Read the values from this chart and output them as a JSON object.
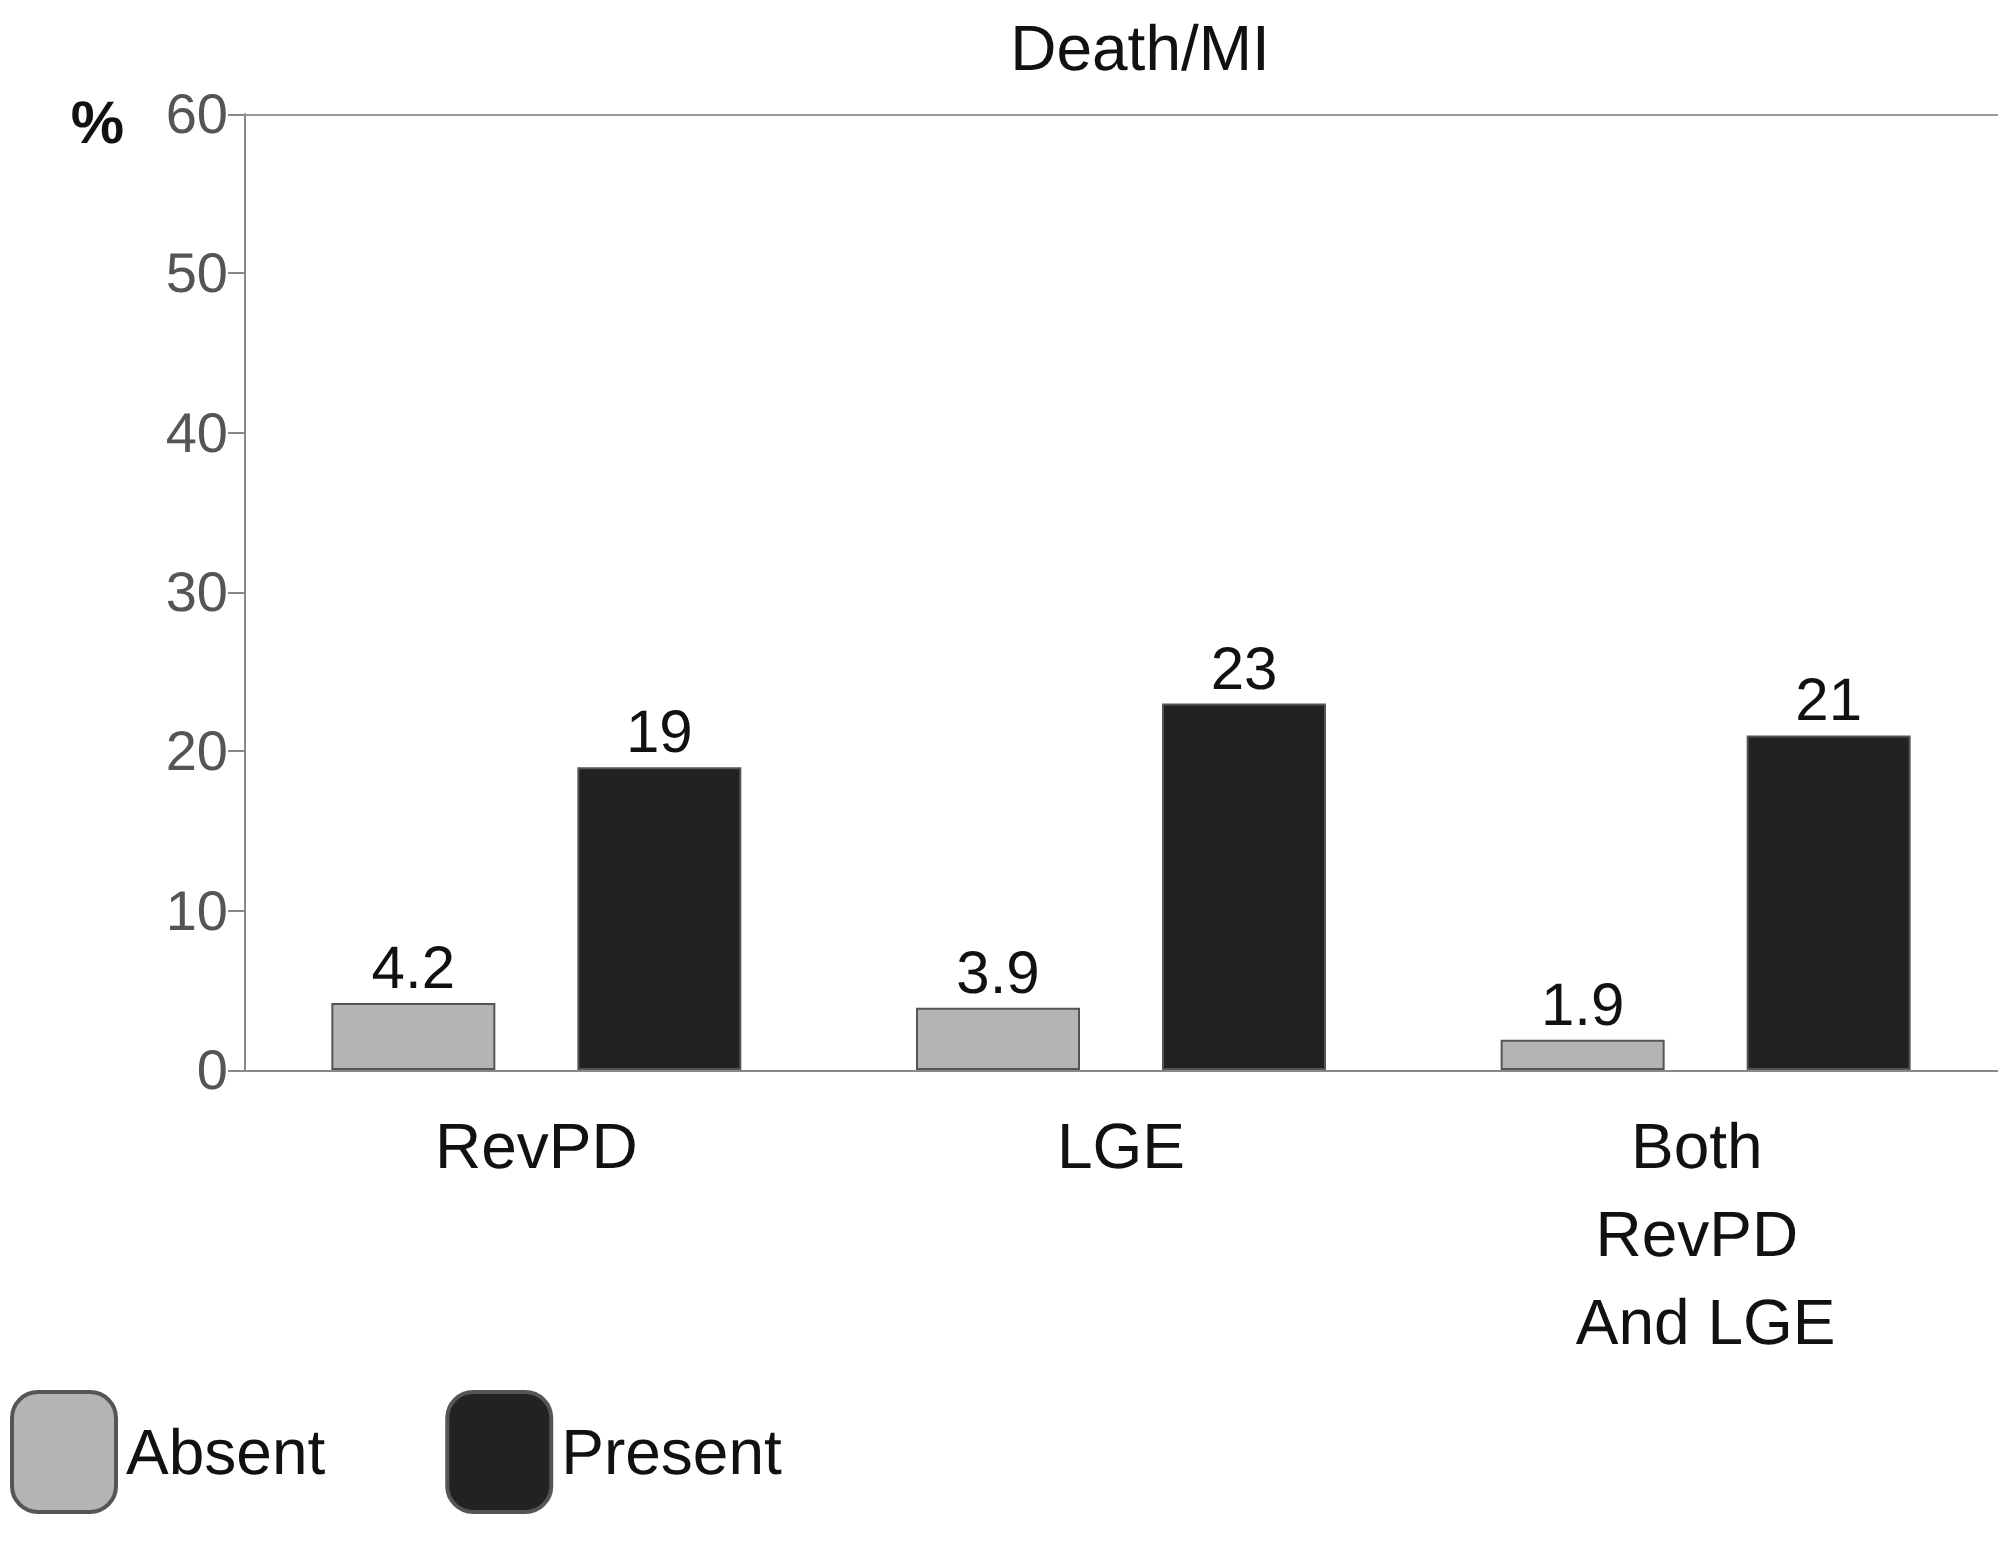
{
  "chart_data": {
    "type": "bar",
    "title": "Death/MI",
    "ylabel": "%",
    "categories": [
      "RevPD",
      "LGE",
      "Both RevPD And LGE"
    ],
    "series": [
      {
        "name": "Absent",
        "color": "#b4b4b4",
        "values": [
          4.2,
          3.9,
          1.9
        ]
      },
      {
        "name": "Present",
        "color": "#222222",
        "values": [
          19,
          23,
          21
        ]
      }
    ],
    "ylim": [
      0,
      60
    ],
    "yticks": [
      0,
      10,
      20,
      30,
      40,
      50,
      60
    ],
    "grid": false,
    "legend": "bottom left",
    "data_labels": true
  }
}
